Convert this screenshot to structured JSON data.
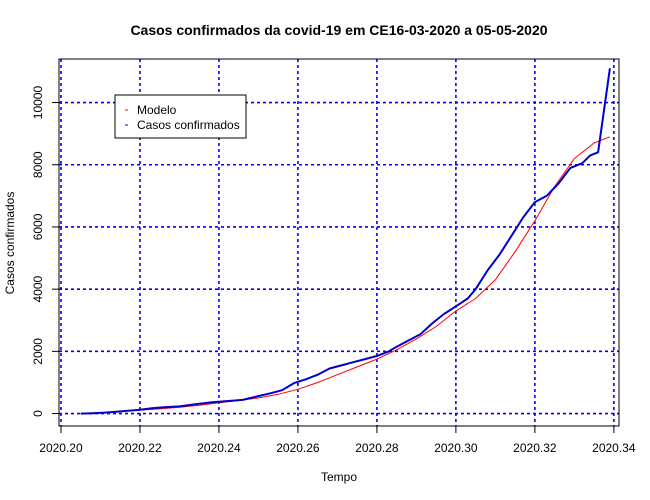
{
  "chart_data": {
    "type": "line",
    "title": "Casos confirmados da covid-19 em CE16-03-2020 a 05-05-2020",
    "xlabel": "Tempo",
    "ylabel": "Casos confirmados",
    "xlim": [
      2020.2,
      2020.34
    ],
    "ylim": [
      -400,
      11400
    ],
    "x_ticks": [
      2020.2,
      2020.22,
      2020.24,
      2020.26,
      2020.28,
      2020.3,
      2020.32,
      2020.34
    ],
    "x_tick_labels": [
      "2020.20",
      "2020.22",
      "2020.24",
      "2020.26",
      "2020.28",
      "2020.30",
      "2020.32",
      "2020.34"
    ],
    "y_ticks": [
      0,
      2000,
      4000,
      6000,
      8000,
      10000
    ],
    "y_tick_labels": [
      "0",
      "2000",
      "4000",
      "6000",
      "8000",
      "10000"
    ],
    "grid": true,
    "grid_color": "#0000ff",
    "legend_position": "top-left",
    "legend": [
      {
        "label": "Modelo",
        "color": "#ff0000"
      },
      {
        "label": "Casos confirmados",
        "color": "#0000ff"
      }
    ],
    "series": [
      {
        "name": "Casos confirmados",
        "color": "#0000cc",
        "x": [
          2020.205,
          2020.208,
          2020.211,
          2020.214,
          2020.217,
          2020.22,
          2020.223,
          2020.226,
          2020.23,
          2020.234,
          2020.238,
          2020.242,
          2020.246,
          2020.25,
          2020.253,
          2020.256,
          2020.259,
          2020.262,
          2020.265,
          2020.268,
          2020.271,
          2020.274,
          2020.277,
          2020.28,
          2020.283,
          2020.285,
          2020.288,
          2020.291,
          2020.294,
          2020.297,
          2020.3,
          2020.303,
          2020.305,
          2020.308,
          2020.311,
          2020.314,
          2020.317,
          2020.32,
          2020.323,
          2020.326,
          2020.329,
          2020.332,
          2020.334,
          2020.336,
          2020.339
        ],
        "y": [
          0,
          10,
          30,
          60,
          90,
          120,
          170,
          200,
          230,
          300,
          360,
          400,
          440,
          560,
          650,
          750,
          980,
          1100,
          1250,
          1450,
          1550,
          1650,
          1750,
          1850,
          2000,
          2150,
          2350,
          2550,
          2900,
          3200,
          3450,
          3700,
          4000,
          4600,
          5100,
          5700,
          6300,
          6800,
          7000,
          7400,
          7900,
          8050,
          8300,
          8400,
          11100
        ]
      },
      {
        "name": "Modelo",
        "color": "#ff0000",
        "x": [
          2020.205,
          2020.21,
          2020.215,
          2020.22,
          2020.225,
          2020.23,
          2020.235,
          2020.24,
          2020.245,
          2020.25,
          2020.255,
          2020.26,
          2020.265,
          2020.27,
          2020.275,
          2020.28,
          2020.285,
          2020.29,
          2020.295,
          2020.3,
          2020.305,
          2020.31,
          2020.315,
          2020.32,
          2020.325,
          2020.33,
          2020.335,
          2020.339
        ],
        "y": [
          0,
          30,
          70,
          110,
          150,
          200,
          270,
          350,
          420,
          500,
          620,
          780,
          1000,
          1250,
          1500,
          1750,
          2050,
          2400,
          2800,
          3300,
          3700,
          4300,
          5200,
          6200,
          7300,
          8200,
          8700,
          8900
        ]
      }
    ]
  }
}
